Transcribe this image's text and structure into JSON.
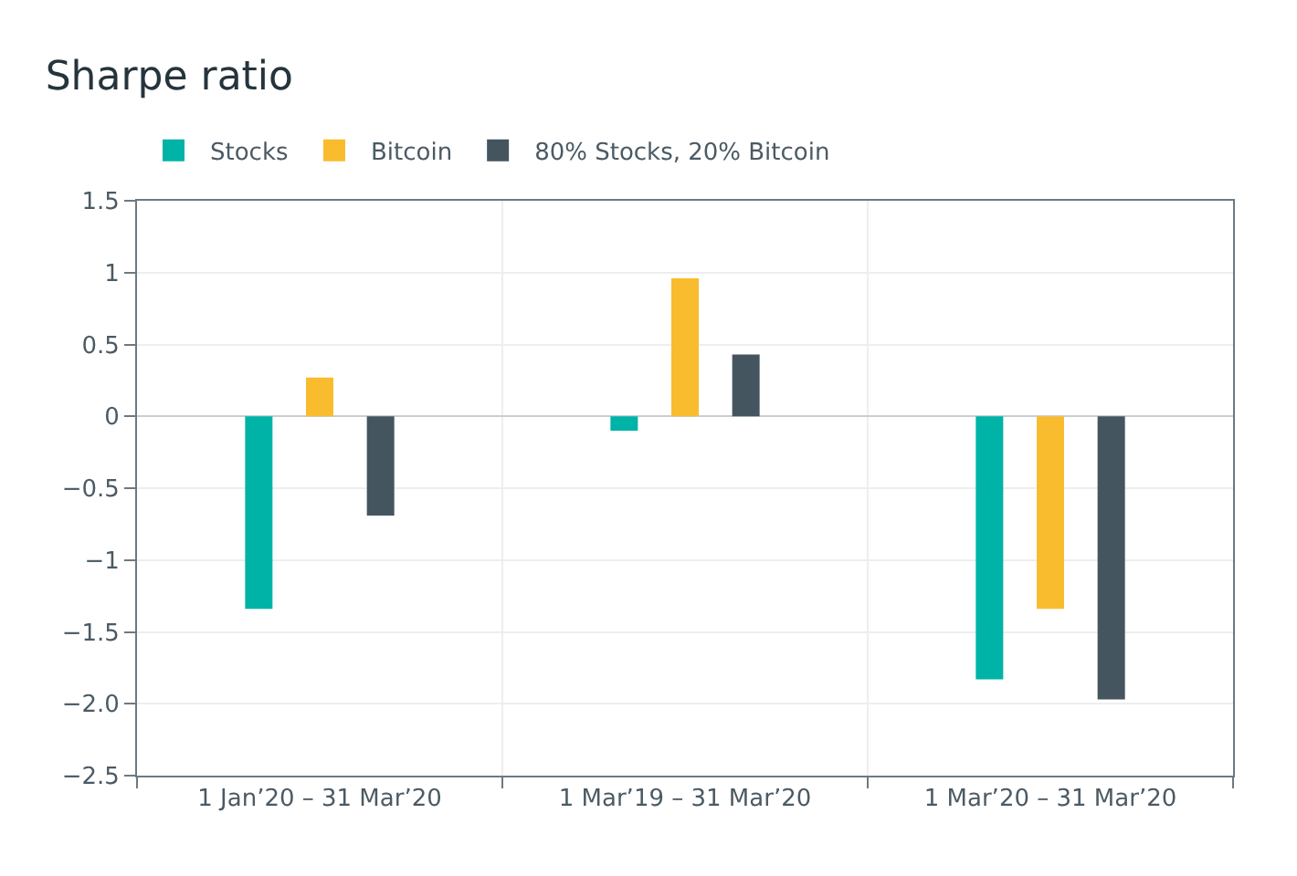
{
  "chart_data": {
    "type": "bar",
    "title": "Sharpe ratio",
    "categories": [
      "1 Jan’20 – 31 Mar’20",
      "1 Mar’19 – 31 Mar’20",
      "1 Mar’20 – 31 Mar’20"
    ],
    "series": [
      {
        "name": "Stocks",
        "color": "#00b3a7",
        "values": [
          -1.34,
          -0.1,
          -1.83
        ]
      },
      {
        "name": "Bitcoin",
        "color": "#f9bc2e",
        "values": [
          0.27,
          0.96,
          -1.34
        ]
      },
      {
        "name": "80% Stocks, 20% Bitcoin",
        "color": "#44555f",
        "values": [
          -0.69,
          0.43,
          -1.97
        ]
      }
    ],
    "ylim": [
      -2.5,
      1.5
    ],
    "yticks": [
      1.5,
      1,
      0.5,
      0,
      {
        "value": -0.5,
        "label": "−0.5"
      },
      {
        "value": -1,
        "label": "−1"
      },
      {
        "value": -1.5,
        "label": "−1.5"
      },
      {
        "value": -2,
        "label": "−2.0"
      },
      {
        "value": -2.5,
        "label": "−2.5"
      }
    ],
    "grid": true,
    "legend": "top left"
  }
}
